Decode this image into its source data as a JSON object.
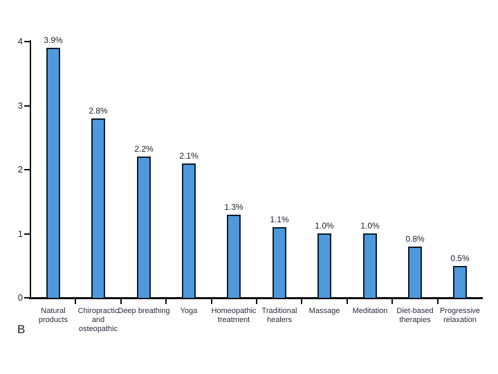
{
  "panel_letter": "B",
  "chart_data": {
    "type": "bar",
    "title": "",
    "xlabel": "",
    "ylabel": "",
    "categories": [
      "Natural products",
      "Chiropractic and osteopathic",
      "Deep breathing",
      "Yoga",
      "Homeopathic treatment",
      "Traditional healers",
      "Massage",
      "Meditation",
      "Diet-based therapies",
      "Progressive relaxation"
    ],
    "values": [
      3.9,
      2.8,
      2.2,
      2.1,
      1.3,
      1.1,
      1.0,
      1.0,
      0.8,
      0.5
    ],
    "value_labels": [
      "3.9%",
      "2.8%",
      "2.2%",
      "2.1%",
      "1.3%",
      "1.1%",
      "1.0%",
      "1.0%",
      "0.8%",
      "0.5%"
    ],
    "y_ticks": [
      0,
      1,
      2,
      3,
      4
    ],
    "ylim": [
      0,
      4
    ],
    "grid": "off",
    "legend": "none",
    "bar_fill_color": "#4d99dc",
    "bar_border_color": "#0e1c2b",
    "axis_color": "#0a0d12"
  }
}
